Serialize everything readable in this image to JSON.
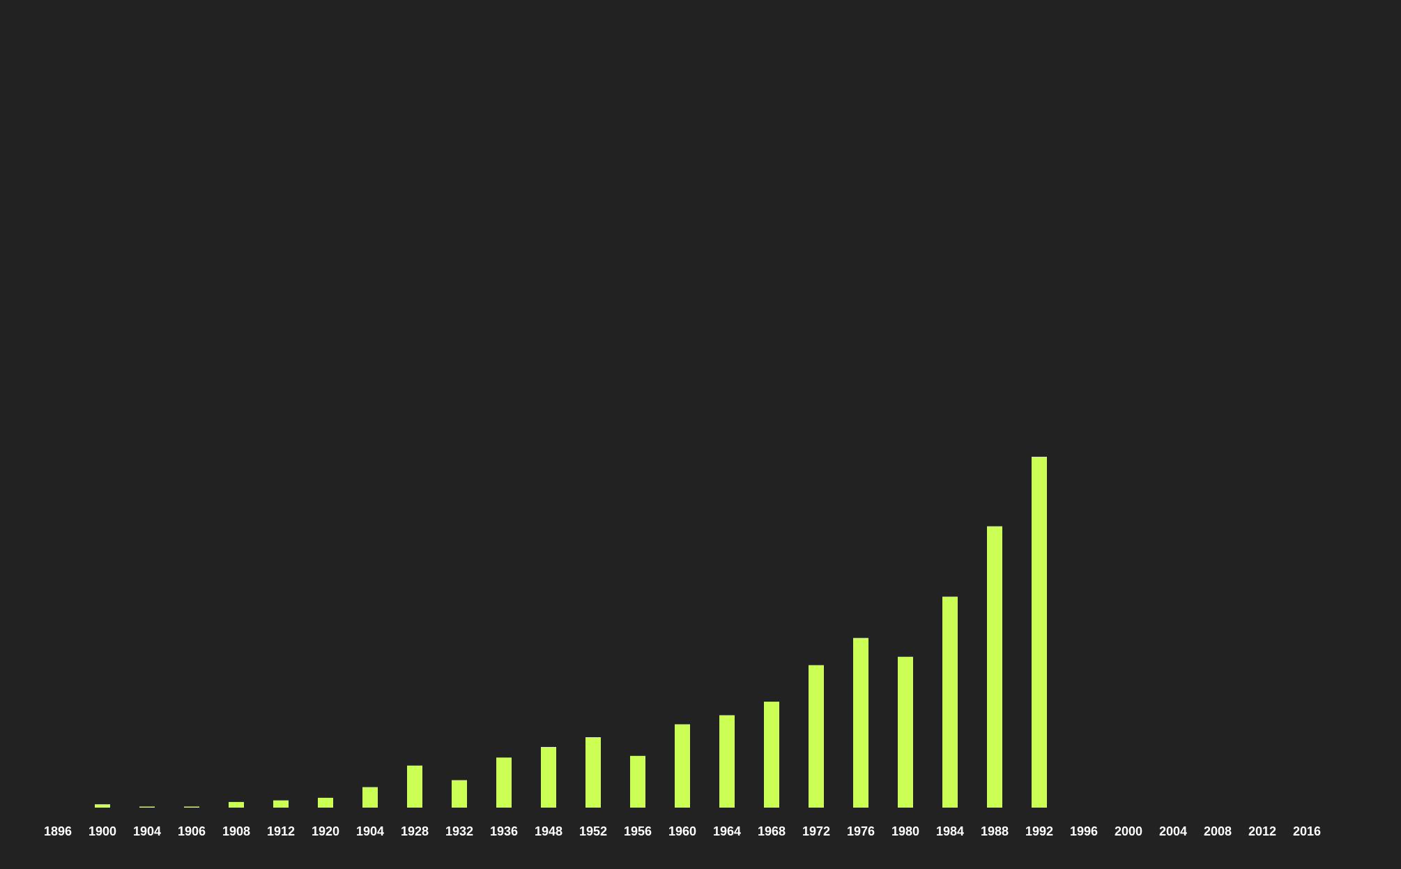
{
  "chart_data": {
    "type": "bar",
    "title": "",
    "xlabel": "",
    "ylabel": "",
    "categories": [
      "1896",
      "1900",
      "1904",
      "1906",
      "1908",
      "1912",
      "1920",
      "1904",
      "1928",
      "1932",
      "1936",
      "1948",
      "1952",
      "1956",
      "1960",
      "1964",
      "1968",
      "1972",
      "1976",
      "1980",
      "1984",
      "1988",
      "1992",
      "1996",
      "2000",
      "2004",
      "2008",
      "2012",
      "2016"
    ],
    "values": [
      0,
      22,
      6,
      6,
      37,
      48,
      65,
      135,
      277,
      181,
      330,
      400,
      464,
      341,
      549,
      609,
      698,
      939,
      1118,
      994,
      1390,
      1854,
      2312,
      0,
      0,
      0,
      0,
      0,
      0
    ],
    "ylim": [
      0,
      5000
    ],
    "grid": false,
    "legend": "none",
    "colors": {
      "background": "#222222",
      "bar": "#ccff55",
      "tick_text": "#ffffff"
    }
  }
}
